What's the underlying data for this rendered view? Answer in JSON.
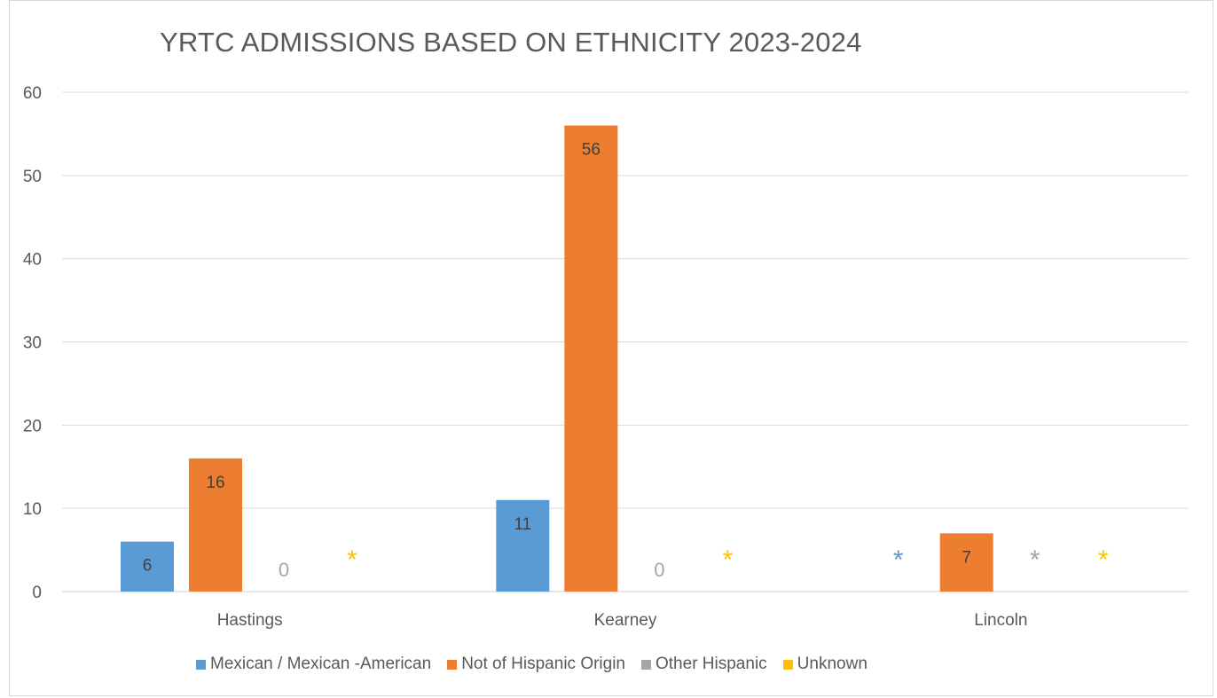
{
  "chart_data": {
    "type": "bar",
    "title": "YRTC ADMISSIONS BASED ON ETHNICITY 2023-2024",
    "xlabel": "",
    "ylabel": "",
    "ylim": [
      0,
      60
    ],
    "yticks": [
      "0",
      "10",
      "20",
      "30",
      "40",
      "50",
      "60"
    ],
    "grid": true,
    "legend_position": "bottom",
    "categories": [
      "Hastings",
      "Kearney",
      "Lincoln"
    ],
    "series": [
      {
        "name": "Mexican / Mexican -American",
        "color": "#5b9bd5",
        "values": [
          6,
          11,
          null
        ],
        "labels": [
          "6",
          "11",
          "*"
        ]
      },
      {
        "name": "Not of Hispanic Origin",
        "color": "#ed7d31",
        "values": [
          16,
          56,
          7
        ],
        "labels": [
          "16",
          "56",
          "7"
        ]
      },
      {
        "name": "Other Hispanic",
        "color": "#a5a5a5",
        "values": [
          0,
          0,
          null
        ],
        "labels": [
          "0",
          "0",
          "*"
        ]
      },
      {
        "name": "Unknown",
        "color": "#ffc000",
        "values": [
          null,
          null,
          null
        ],
        "labels": [
          "*",
          "*",
          "*"
        ]
      }
    ]
  }
}
